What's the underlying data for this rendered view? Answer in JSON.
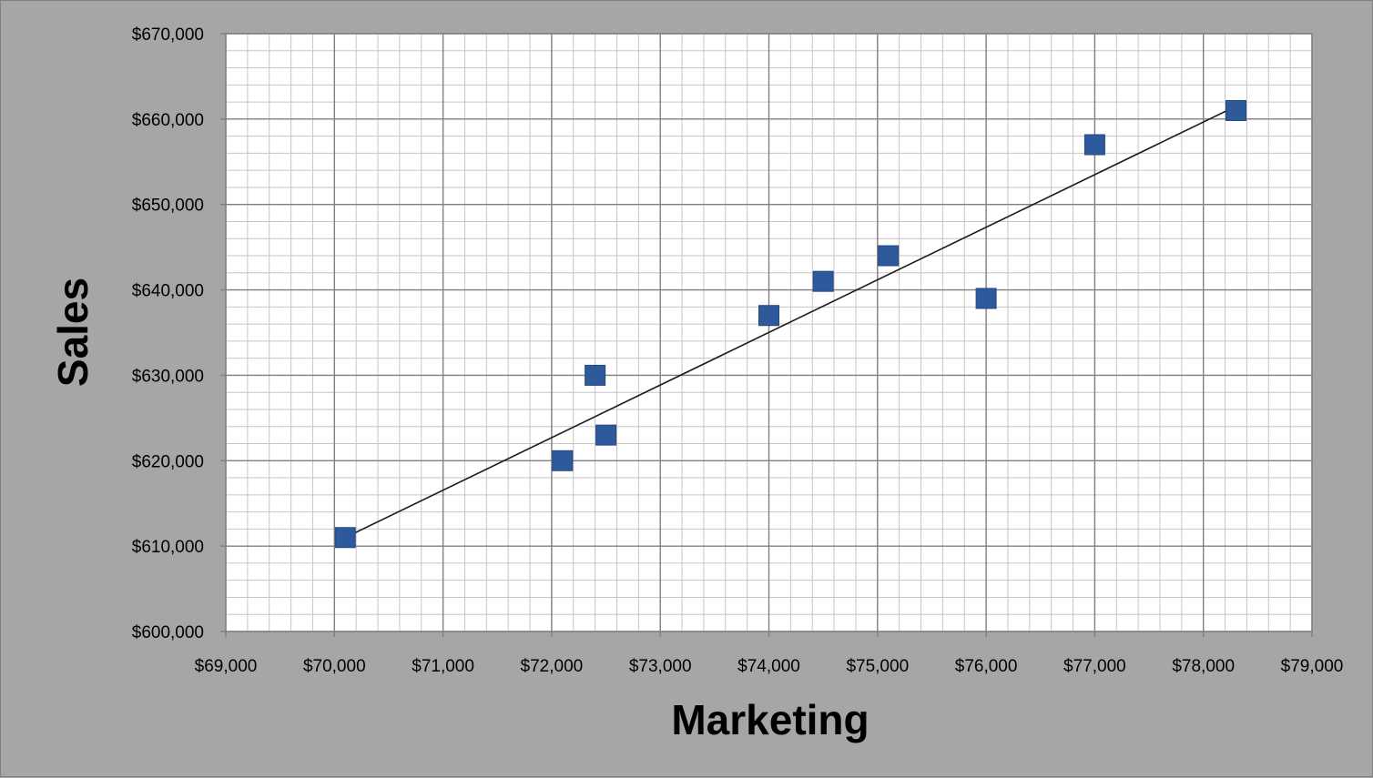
{
  "chart_data": {
    "type": "scatter",
    "title": "",
    "xlabel": "Marketing",
    "ylabel": "Sales",
    "xlim": [
      69000,
      79000
    ],
    "ylim": [
      600000,
      670000
    ],
    "x_ticks": [
      69000,
      70000,
      71000,
      72000,
      73000,
      74000,
      75000,
      76000,
      77000,
      78000,
      79000
    ],
    "y_ticks": [
      600000,
      610000,
      620000,
      630000,
      640000,
      650000,
      660000,
      670000
    ],
    "x_tick_labels": [
      "$69,000",
      "$70,000",
      "$71,000",
      "$72,000",
      "$73,000",
      "$74,000",
      "$75,000",
      "$76,000",
      "$77,000",
      "$78,000",
      "$79,000"
    ],
    "y_tick_labels": [
      "$600,000",
      "$610,000",
      "$620,000",
      "$630,000",
      "$640,000",
      "$650,000",
      "$660,000",
      "$670,000"
    ],
    "grid": true,
    "legend": "none",
    "marker_color": "#2e5a9c",
    "trendline_color": "#1a1a1a",
    "series": [
      {
        "x": [
          70100,
          72100,
          72400,
          72500,
          74000,
          74500,
          75100,
          76000,
          77000,
          78300
        ],
        "y": [
          611000,
          620000,
          630000,
          623000,
          637000,
          641000,
          644000,
          639000,
          657000,
          661000
        ]
      }
    ],
    "trendline": {
      "type": "linear",
      "x": [
        70100,
        78300
      ],
      "y": [
        611000,
        661500
      ]
    }
  }
}
